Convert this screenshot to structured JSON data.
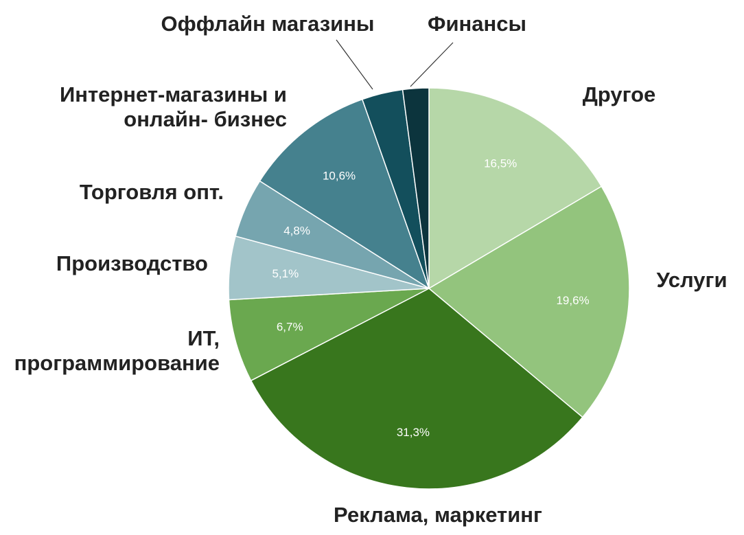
{
  "chart_data": {
    "type": "pie",
    "start": "top",
    "direction": "clockwise",
    "slices": [
      {
        "label": "Другое",
        "value": 16.5,
        "value_label": "16,5%",
        "color": "#b6d7a8"
      },
      {
        "label": "Услуги",
        "value": 19.6,
        "value_label": "19,6%",
        "color": "#93c47d"
      },
      {
        "label": "Реклама, маркетинг",
        "value": 31.3,
        "value_label": "31,3%",
        "color": "#38761d"
      },
      {
        "label": "ИТ, программирование",
        "label_lines": [
          "ИТ,",
          "программирование"
        ],
        "value": 6.7,
        "value_label": "6,7%",
        "color": "#6aa84f"
      },
      {
        "label": "Производство",
        "value": 5.1,
        "value_label": "5,1%",
        "color": "#a2c4c9"
      },
      {
        "label": "Торговля опт.",
        "value": 4.8,
        "value_label": "4,8%",
        "color": "#76a5af"
      },
      {
        "label": "Интернет-магазины и онлайн- бизнес",
        "label_lines": [
          "Интернет-магазины и",
          "онлайн- бизнес"
        ],
        "value": 10.6,
        "value_label": "10,6%",
        "color": "#45818e"
      },
      {
        "label": "Оффлайн магазины",
        "value": 3.3,
        "value_label": "",
        "color": "#134f5c"
      },
      {
        "label": "Финансы",
        "value": 2.1,
        "value_label": "",
        "color": "#0c343d"
      }
    ]
  }
}
